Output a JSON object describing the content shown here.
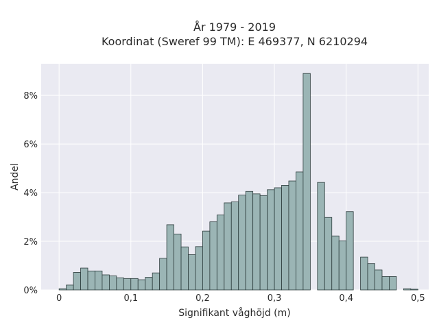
{
  "chart_data": {
    "type": "bar",
    "title_lines": [
      "År 1979 - 2019",
      "Koordinat (Sweref 99 TM): E 469377, N 6210294"
    ],
    "xlabel": "Signifikant våghöjd (m)",
    "ylabel": "Andel",
    "xlim": [
      -0.025,
      0.515
    ],
    "ylim": [
      0,
      9.3
    ],
    "bin_width": 0.01,
    "x_ticks": [
      {
        "value": 0,
        "label": "0"
      },
      {
        "value": 0.1,
        "label": "0,1"
      },
      {
        "value": 0.2,
        "label": "0,2"
      },
      {
        "value": 0.3,
        "label": "0,3"
      },
      {
        "value": 0.4,
        "label": "0,4"
      },
      {
        "value": 0.5,
        "label": "0,5"
      }
    ],
    "y_ticks": [
      {
        "value": 0,
        "label": "0%"
      },
      {
        "value": 2,
        "label": "2%"
      },
      {
        "value": 4,
        "label": "4%"
      },
      {
        "value": 6,
        "label": "6%"
      },
      {
        "value": 8,
        "label": "8%"
      }
    ],
    "grid": true,
    "bins_start": [
      0,
      0.01,
      0.02,
      0.03,
      0.04,
      0.05,
      0.06,
      0.07,
      0.08,
      0.09,
      0.1,
      0.11,
      0.12,
      0.13,
      0.14,
      0.15,
      0.16,
      0.17,
      0.18,
      0.19,
      0.2,
      0.21,
      0.22,
      0.23,
      0.24,
      0.25,
      0.26,
      0.27,
      0.28,
      0.29,
      0.3,
      0.31,
      0.32,
      0.33,
      0.34,
      0.35,
      0.36,
      0.37,
      0.38,
      0.39,
      0.4,
      0.41,
      0.42,
      0.43,
      0.44,
      0.45,
      0.46,
      0.47,
      0.48,
      0.49
    ],
    "values": [
      0.05,
      0.2,
      0.72,
      0.9,
      0.78,
      0.78,
      0.62,
      0.58,
      0.5,
      0.47,
      0.47,
      0.42,
      0.52,
      0.7,
      1.3,
      2.68,
      2.3,
      1.77,
      1.45,
      1.78,
      2.42,
      2.8,
      3.08,
      3.58,
      3.62,
      3.9,
      4.05,
      3.95,
      3.88,
      4.12,
      4.2,
      4.3,
      4.48,
      4.85,
      8.9,
      0,
      4.42,
      2.98,
      2.22,
      2.02,
      3.22,
      0,
      1.35,
      1.08,
      0.82,
      0.55,
      0.55,
      0,
      0.05,
      0.03
    ],
    "colors": {
      "bar_fill": "#9bb5b5",
      "bar_edge": "#2b3b3b",
      "plot_bg": "#eaeaf2",
      "grid": "#ffffff"
    }
  }
}
